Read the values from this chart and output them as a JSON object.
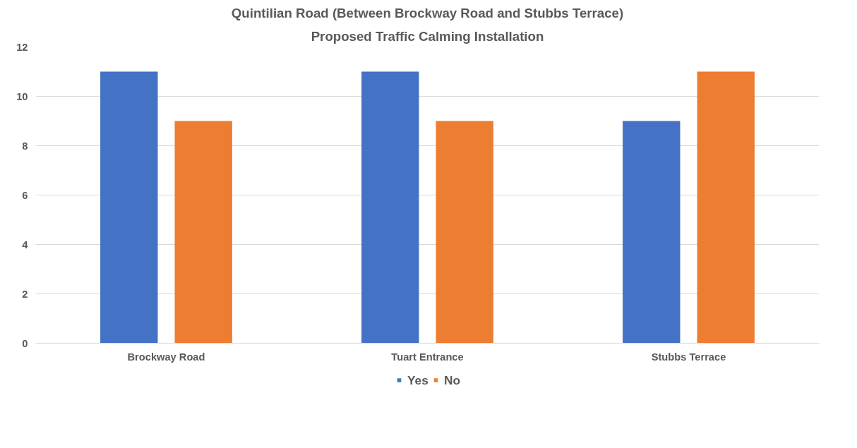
{
  "chart_data": {
    "type": "bar",
    "title": "Quintilian Road (Between Brockway Road and Stubbs Terrace)",
    "subtitle": "Proposed Traffic Calming Installation",
    "categories": [
      "Brockway Road",
      "Tuart Entrance",
      "Stubbs Terrace"
    ],
    "series": [
      {
        "name": "Yes",
        "color": "#4472c4",
        "values": [
          11,
          11,
          9
        ]
      },
      {
        "name": "No",
        "color": "#ed7d31",
        "values": [
          9,
          9,
          11
        ]
      }
    ],
    "ylim": [
      0,
      12
    ],
    "yticks": [
      0,
      2,
      4,
      6,
      8,
      10,
      12
    ],
    "grid": "y",
    "legend": "bottom"
  }
}
